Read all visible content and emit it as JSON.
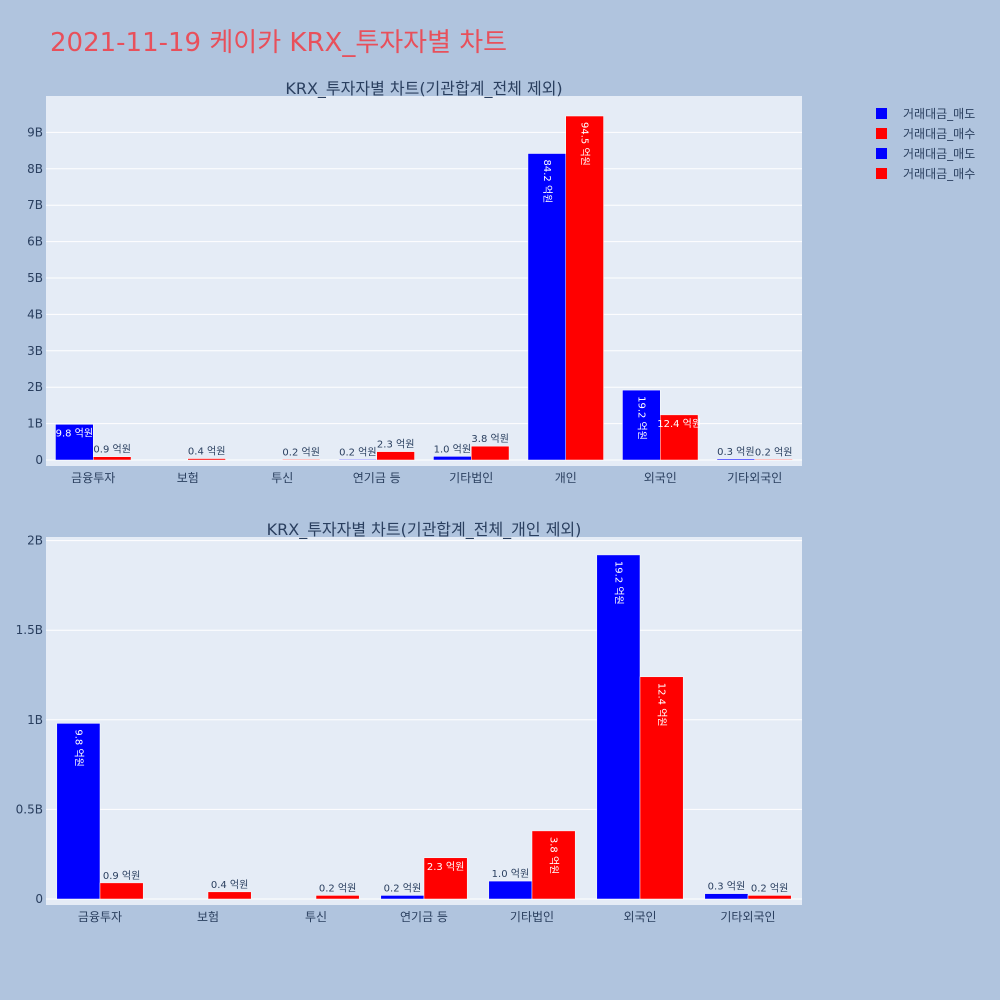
{
  "title": "2021-11-19 케이카 KRX_투자자별 차트",
  "colors": {
    "sell": "#0000ff",
    "buy": "#ff0000",
    "plot_bg": "#e5ecf6",
    "page_bg": "#b0c4de",
    "title": "#e8505b"
  },
  "legend": [
    {
      "name": "거래대금_매도",
      "color": "#0000ff"
    },
    {
      "name": "거래대금_매수",
      "color": "#ff0000"
    },
    {
      "name": "거래대금_매도",
      "color": "#0000ff"
    },
    {
      "name": "거래대금_매수",
      "color": "#ff0000"
    }
  ],
  "chart_data": [
    {
      "type": "bar",
      "title": "KRX_투자자별 차트(기관합계_전체 제외)",
      "categories": [
        "금융투자",
        "보험",
        "투신",
        "연기금 등",
        "기타법인",
        "개인",
        "외국인",
        "기타외국인"
      ],
      "series": [
        {
          "name": "거래대금_매도",
          "values": [
            980000000,
            0,
            0,
            20000000,
            100000000,
            8420000000,
            1920000000,
            30000000
          ],
          "labels": [
            "9.8 억원",
            "",
            "",
            "0.2 억원",
            "1.0 억원",
            "84.2 억원",
            "19.2 억원",
            "0.3 억원"
          ]
        },
        {
          "name": "거래대금_매수",
          "values": [
            90000000,
            40000000,
            20000000,
            230000000,
            380000000,
            9450000000,
            1240000000,
            20000000
          ],
          "labels": [
            "0.9 억원",
            "0.4 억원",
            "0.2 억원",
            "2.3 억원",
            "3.8 억원",
            "94.5 억원",
            "12.4 억원",
            "0.2 억원"
          ]
        }
      ],
      "ylim": [
        0,
        10000000000
      ],
      "yticks": [
        0,
        1000000000,
        2000000000,
        3000000000,
        4000000000,
        5000000000,
        6000000000,
        7000000000,
        8000000000,
        9000000000
      ],
      "ytick_labels": [
        "0",
        "1B",
        "2B",
        "3B",
        "4B",
        "5B",
        "6B",
        "7B",
        "8B",
        "9B"
      ],
      "grid": true
    },
    {
      "type": "bar",
      "title": "KRX_투자자별 차트(기관합계_전체_개인 제외)",
      "categories": [
        "금융투자",
        "보험",
        "투신",
        "연기금 등",
        "기타법인",
        "외국인",
        "기타외국인"
      ],
      "series": [
        {
          "name": "거래대금_매도",
          "values": [
            980000000,
            0,
            0,
            20000000,
            100000000,
            1920000000,
            30000000
          ],
          "labels": [
            "9.8 억원",
            "",
            "",
            "0.2 억원",
            "1.0 억원",
            "19.2 억원",
            "0.3 억원"
          ]
        },
        {
          "name": "거래대금_매수",
          "values": [
            90000000,
            40000000,
            20000000,
            230000000,
            380000000,
            1240000000,
            20000000
          ],
          "labels": [
            "0.9 억원",
            "0.4 억원",
            "0.2 억원",
            "2.3 억원",
            "3.8 억원",
            "12.4 억원",
            "0.2 억원"
          ]
        }
      ],
      "ylim": [
        0,
        2020000000
      ],
      "yticks": [
        0,
        500000000,
        1000000000,
        1500000000,
        2000000000
      ],
      "ytick_labels": [
        "0",
        "0.5B",
        "1B",
        "1.5B",
        "2B"
      ],
      "grid": true
    }
  ]
}
